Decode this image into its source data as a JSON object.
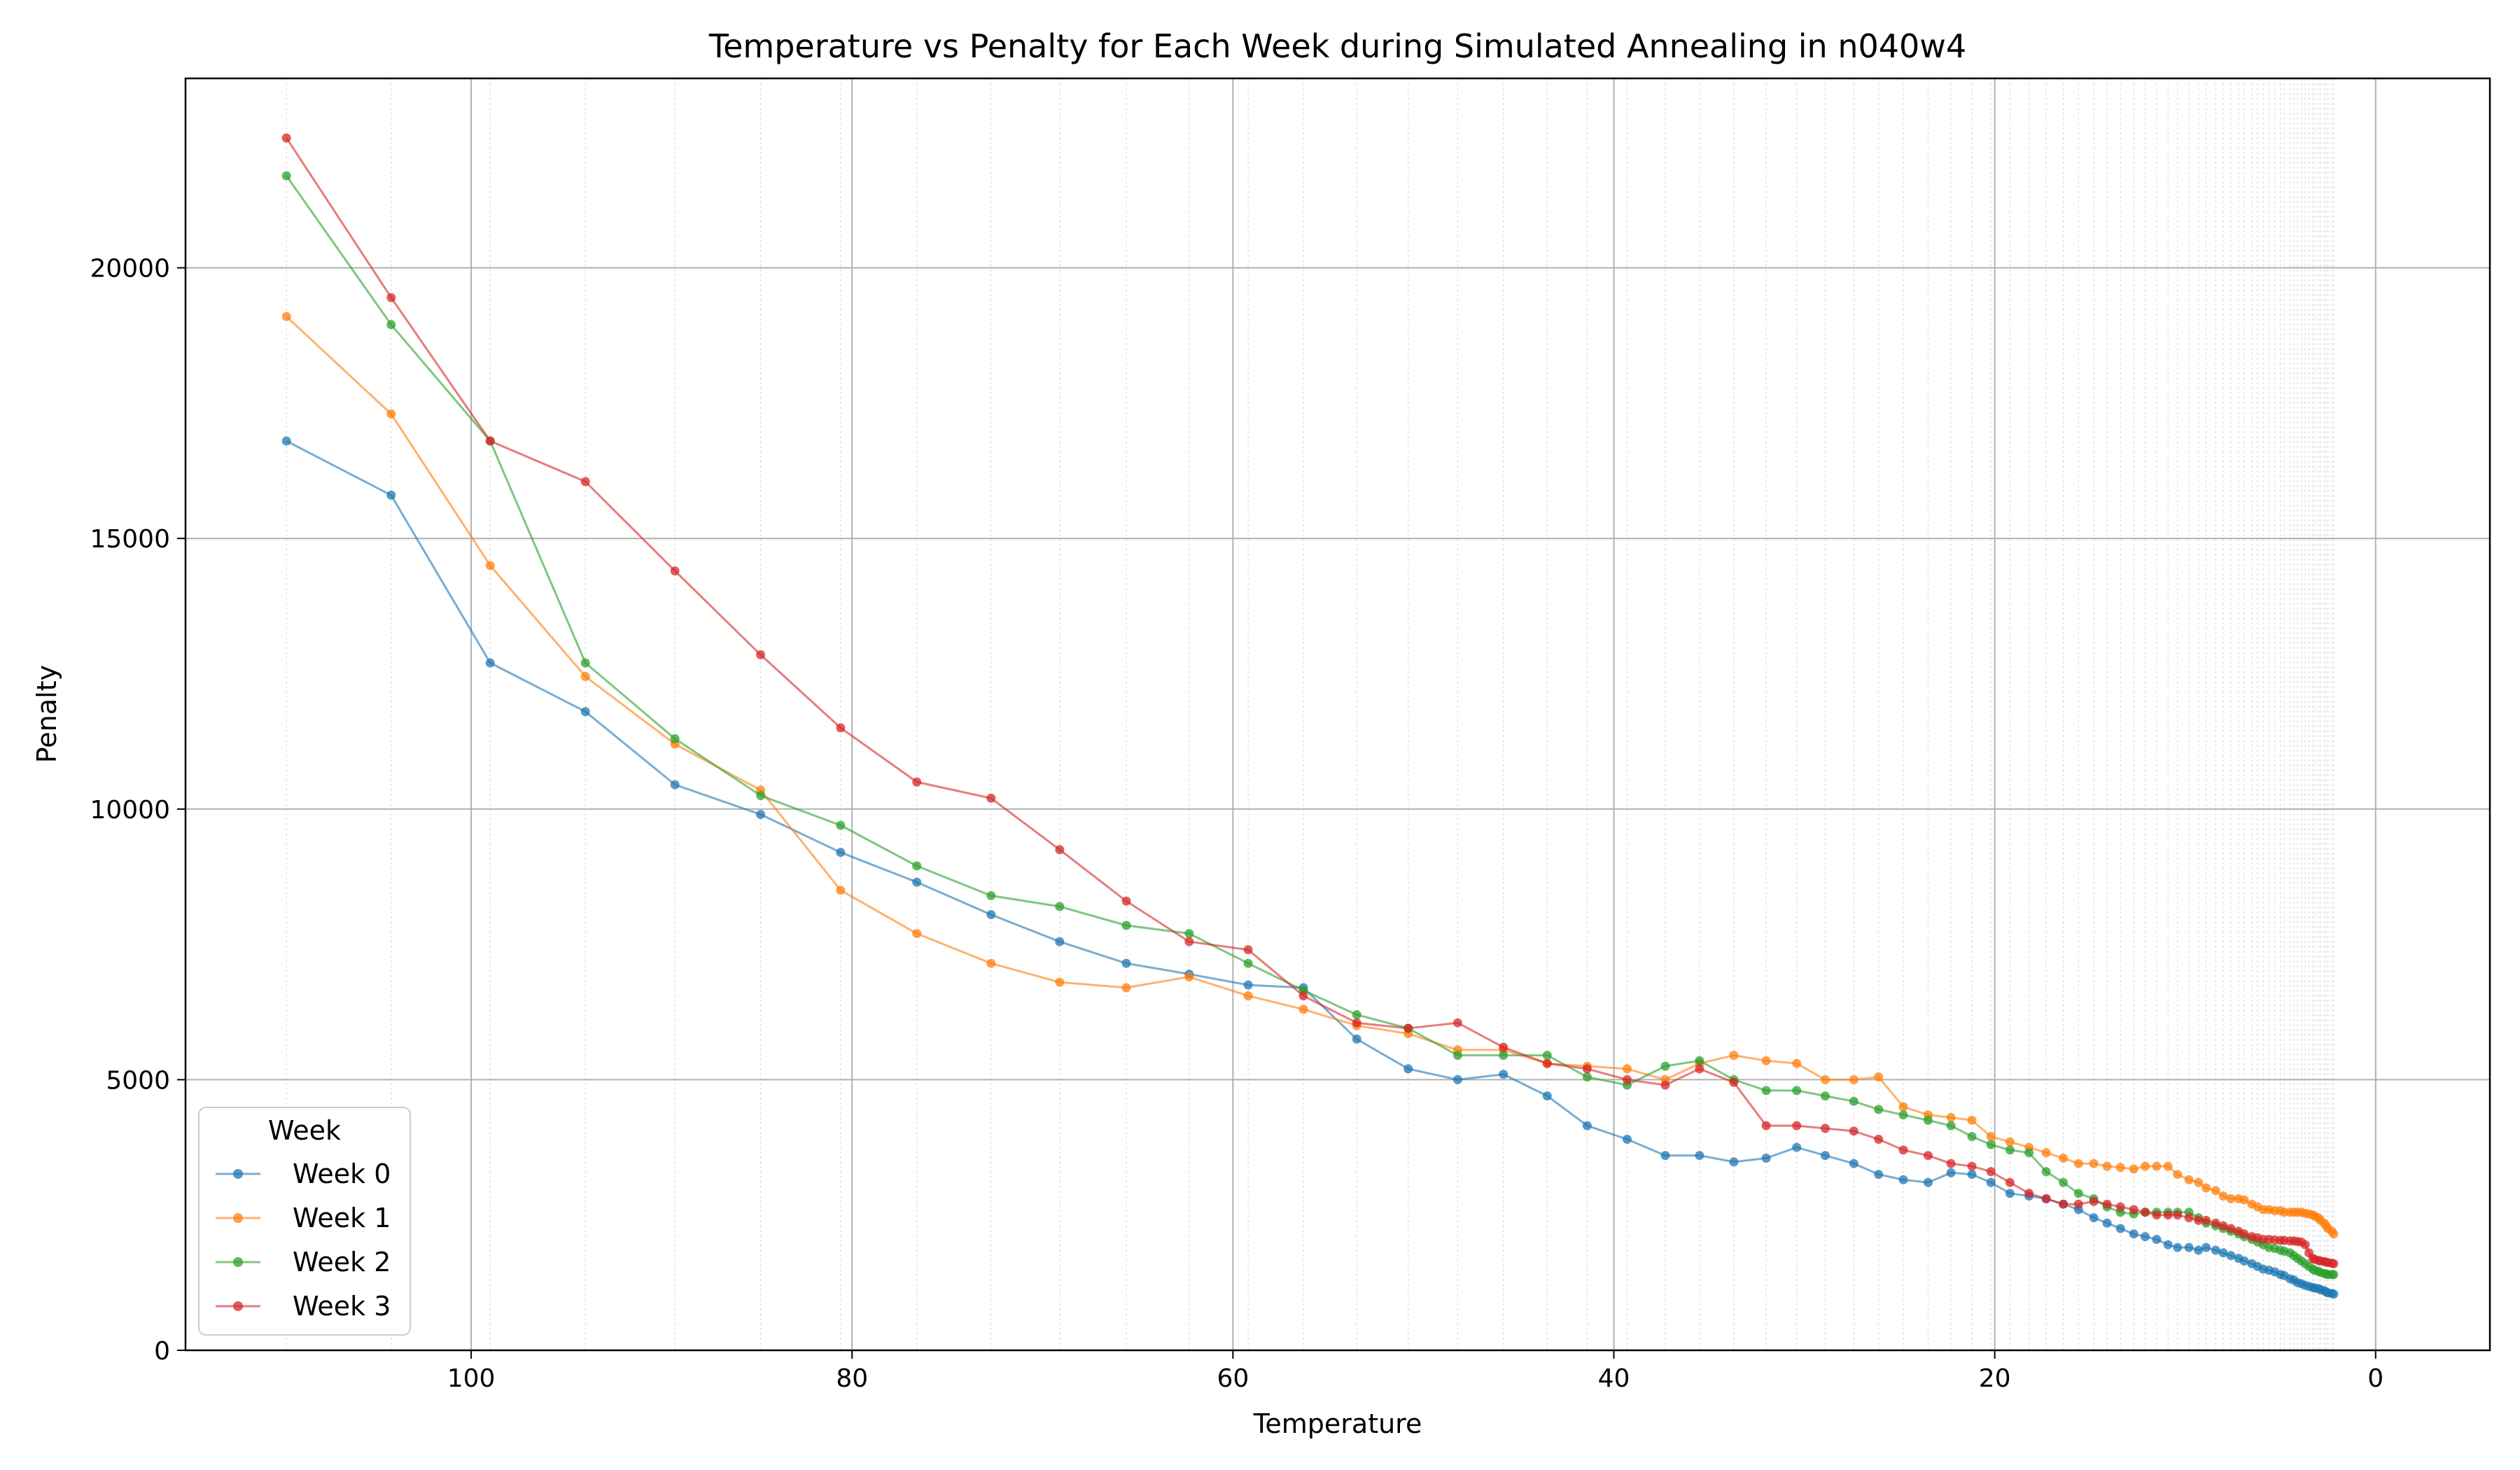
{
  "chart_data": {
    "type": "line",
    "title": "Temperature vs Penalty for Each Week during Simulated Annealing in n040w4",
    "xlabel": "Temperature",
    "ylabel": "Penalty",
    "xlim": [
      115,
      -6
    ],
    "ylim": [
      0,
      23500
    ],
    "x_inverted": true,
    "grid": "on",
    "xticks": [
      100,
      80,
      60,
      40,
      20,
      0
    ],
    "yticks": [
      0,
      5000,
      10000,
      15000,
      20000
    ],
    "legend": {
      "title": "Week",
      "placement": "lower-left"
    },
    "x": [
      109.7,
      104.2,
      99.0,
      94.0,
      89.3,
      84.8,
      80.6,
      76.6,
      72.7,
      69.1,
      65.6,
      62.3,
      59.2,
      56.3,
      53.5,
      50.8,
      48.2,
      45.8,
      43.5,
      41.4,
      39.3,
      37.3,
      35.5,
      33.7,
      32.0,
      30.4,
      28.9,
      27.4,
      26.1,
      24.8,
      23.5,
      22.3,
      21.2,
      20.2,
      19.2,
      18.2,
      17.3,
      16.4,
      15.6,
      14.8,
      14.1,
      13.4,
      12.7,
      12.1,
      11.5,
      10.9,
      10.4,
      9.8,
      9.3,
      8.9,
      8.4,
      8.0,
      7.6,
      7.2,
      6.9,
      6.5,
      6.2,
      5.9,
      5.6,
      5.3,
      5.0,
      4.8,
      4.5,
      4.3,
      4.1,
      3.9,
      3.7,
      3.5,
      3.3,
      3.2,
      3.0,
      2.9,
      2.7,
      2.6,
      2.5,
      2.3,
      2.2
    ],
    "series": [
      {
        "name": "Week 0",
        "color": "#1f77b4",
        "values": [
          16800,
          15800,
          12700,
          11800,
          10450,
          9900,
          9200,
          8650,
          8050,
          7550,
          7150,
          6950,
          6750,
          6700,
          5750,
          5200,
          5000,
          5100,
          4700,
          4150,
          3900,
          3600,
          3600,
          3480,
          3550,
          3750,
          3600,
          3450,
          3250,
          3150,
          3100,
          3280,
          3250,
          3100,
          2900,
          2850,
          2800,
          2700,
          2600,
          2450,
          2350,
          2250,
          2150,
          2100,
          2050,
          1950,
          1900,
          1900,
          1850,
          1900,
          1850,
          1800,
          1750,
          1700,
          1650,
          1600,
          1550,
          1500,
          1480,
          1450,
          1400,
          1380,
          1320,
          1300,
          1250,
          1230,
          1200,
          1180,
          1160,
          1150,
          1140,
          1120,
          1100,
          1080,
          1060,
          1050,
          1040
        ]
      },
      {
        "name": "Week 1",
        "color": "#ff7f0e",
        "values": [
          19100,
          17300,
          14500,
          12450,
          11200,
          10350,
          8500,
          7700,
          7150,
          6800,
          6700,
          6900,
          6550,
          6300,
          6000,
          5850,
          5550,
          5550,
          5300,
          5250,
          5200,
          5000,
          5300,
          5450,
          5350,
          5300,
          5000,
          5000,
          5050,
          4500,
          4350,
          4300,
          4250,
          3950,
          3850,
          3750,
          3650,
          3550,
          3450,
          3450,
          3400,
          3380,
          3350,
          3400,
          3400,
          3400,
          3250,
          3150,
          3100,
          3000,
          2950,
          2850,
          2800,
          2800,
          2780,
          2700,
          2650,
          2600,
          2600,
          2580,
          2580,
          2550,
          2550,
          2550,
          2550,
          2550,
          2530,
          2520,
          2500,
          2480,
          2450,
          2400,
          2350,
          2300,
          2250,
          2200,
          2150
        ]
      },
      {
        "name": "Week 2",
        "color": "#2ca02c",
        "values": [
          21700,
          18950,
          16800,
          12700,
          11300,
          10250,
          9700,
          8950,
          8400,
          8200,
          7850,
          7700,
          7150,
          6650,
          6200,
          5950,
          5450,
          5450,
          5450,
          5050,
          4900,
          5250,
          5350,
          5000,
          4800,
          4800,
          4700,
          4600,
          4450,
          4350,
          4250,
          4150,
          3950,
          3800,
          3700,
          3650,
          3300,
          3100,
          2900,
          2800,
          2650,
          2550,
          2520,
          2550,
          2550,
          2550,
          2550,
          2550,
          2450,
          2350,
          2300,
          2250,
          2200,
          2150,
          2100,
          2050,
          2000,
          1950,
          1900,
          1880,
          1850,
          1830,
          1800,
          1750,
          1700,
          1650,
          1600,
          1550,
          1500,
          1480,
          1460,
          1440,
          1420,
          1410,
          1400,
          1400,
          1400
        ]
      },
      {
        "name": "Week 3",
        "color": "#d62728",
        "values": [
          22400,
          19450,
          16800,
          16050,
          14400,
          12850,
          11500,
          10500,
          10200,
          9250,
          8300,
          7550,
          7400,
          6550,
          6050,
          5950,
          6050,
          5600,
          5300,
          5200,
          5000,
          4900,
          5200,
          4950,
          4150,
          4150,
          4100,
          4050,
          3900,
          3700,
          3600,
          3450,
          3400,
          3300,
          3100,
          2900,
          2800,
          2700,
          2700,
          2750,
          2700,
          2650,
          2600,
          2550,
          2500,
          2500,
          2500,
          2450,
          2400,
          2400,
          2350,
          2300,
          2250,
          2200,
          2150,
          2100,
          2080,
          2050,
          2050,
          2040,
          2030,
          2030,
          2020,
          2020,
          2010,
          2000,
          1950,
          1800,
          1700,
          1680,
          1660,
          1650,
          1640,
          1630,
          1620,
          1610,
          1600
        ]
      }
    ]
  }
}
